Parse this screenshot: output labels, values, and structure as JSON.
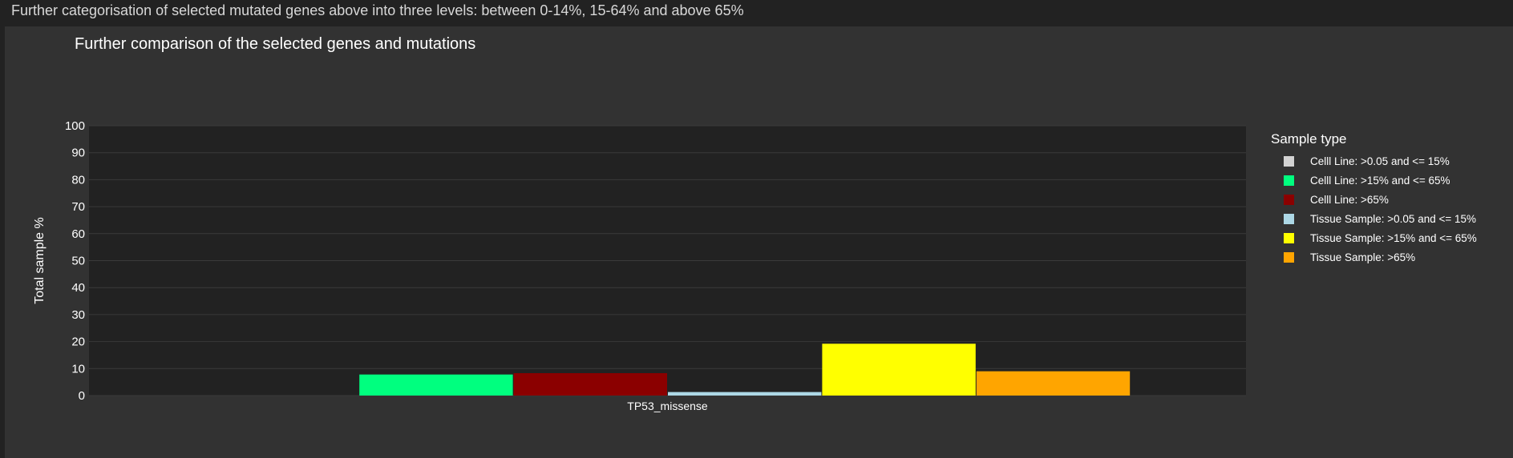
{
  "page": {
    "header": "Further categorisation of selected mutated genes above into three levels: between 0-14%, 15-64% and above 65%"
  },
  "chart_data": {
    "type": "bar",
    "title": "Further comparison of the selected genes and mutations",
    "xlabel": "",
    "ylabel": "Total sample %",
    "ylim": [
      0,
      100
    ],
    "yticks": [
      "0",
      "10",
      "20",
      "30",
      "40",
      "50",
      "60",
      "70",
      "80",
      "90",
      "100"
    ],
    "categories": [
      "TP53_missense"
    ],
    "grid": true,
    "legend_title": "Sample type",
    "legend_position": "right",
    "series": [
      {
        "name": "Celll Line: >0.05 and <= 15%",
        "color": "#d3d3d3",
        "values": [
          0
        ]
      },
      {
        "name": "Celll Line: >15% and <= 65%",
        "color": "#00ff7f",
        "values": [
          7.8
        ]
      },
      {
        "name": "Celll Line: >65%",
        "color": "#8b0000",
        "values": [
          8.3
        ]
      },
      {
        "name": "Tissue Sample: >0.05 and <= 15%",
        "color": "#add8e6",
        "values": [
          1.3
        ]
      },
      {
        "name": "Tissue Sample: >15% and <= 65%",
        "color": "#ffff00",
        "values": [
          19.2
        ]
      },
      {
        "name": "Tissue Sample: >65%",
        "color": "#ffa500",
        "values": [
          9.0
        ]
      }
    ]
  }
}
